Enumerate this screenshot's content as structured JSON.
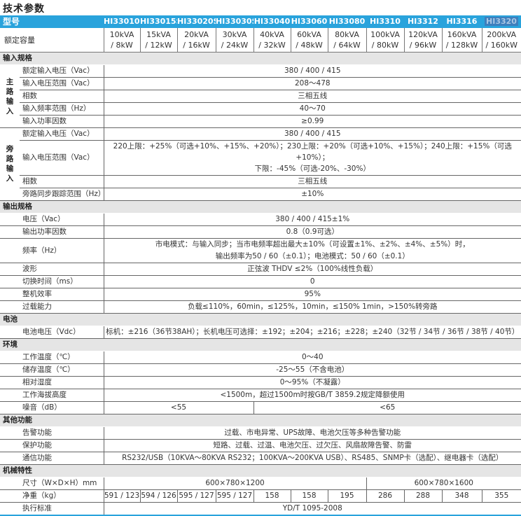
{
  "title": "技术参数",
  "header": {
    "label": "型号",
    "models": [
      "HI33010S/H",
      "HI33015S/H",
      "HI33020S/H",
      "HI33030S/H",
      "HI33040",
      "HI33060",
      "HI33080",
      "HI3310",
      "HI3312",
      "HI3316",
      "HI3320"
    ],
    "selected_model": "HI3320"
  },
  "capacity": {
    "label": "额定容量",
    "values": [
      "10kVA\n/ 8kW",
      "15kVA\n/ 12kW",
      "20kVA\n/ 16kW",
      "30kVA\n/ 24kW",
      "40kVA\n/ 32kW",
      "60kVA\n/ 48kW",
      "80kVA\n/ 64kW",
      "100kVA\n/ 80kW",
      "120kVA\n/ 96kW",
      "160kVA\n/ 128kW",
      "200kVA\n/ 160kW"
    ]
  },
  "sections": [
    {
      "title": "输入规格",
      "rows": [
        {
          "group": "主路输入",
          "group_rows": 5,
          "label": "额定输入电压（Vac）",
          "cells": [
            {
              "text": "380 / 400 / 415",
              "span": 11
            }
          ]
        },
        {
          "label": "输入电压范围（Vac）",
          "cells": [
            {
              "text": "208～478",
              "span": 11
            }
          ]
        },
        {
          "label": "相数",
          "cells": [
            {
              "text": "三相五线",
              "span": 11
            }
          ]
        },
        {
          "label": "输入频率范围（Hz）",
          "cells": [
            {
              "text": "40～70",
              "span": 11
            }
          ]
        },
        {
          "label": "输入功率因数",
          "cells": [
            {
              "text": "≥0.99",
              "span": 11
            }
          ]
        },
        {
          "group": "旁路输入",
          "group_rows": 4,
          "label": "额定输入电压（Vac）",
          "cells": [
            {
              "text": "380 / 400 / 415",
              "span": 11
            }
          ]
        },
        {
          "label": "输入电压范围（Vac）",
          "lines": 2,
          "cells": [
            {
              "text": "220上限：+25%（可选+10%、+15%、+20%）；230上限：+20%（可选+10%、+15%）；240上限：+15%（可选+10%）；\n下限：-45%（可选-20%、-30%）",
              "span": 11
            }
          ]
        },
        {
          "label": "相数",
          "cells": [
            {
              "text": "三相五线",
              "span": 11
            }
          ]
        },
        {
          "label": "旁路同步跟踪范围（Hz）",
          "cells": [
            {
              "text": "±10%",
              "span": 11
            }
          ]
        }
      ]
    },
    {
      "title": "输出规格",
      "rows": [
        {
          "label": "电压（Vac）",
          "cells": [
            {
              "text": "380 / 400 / 415±1%",
              "span": 11
            }
          ]
        },
        {
          "label": "输出功率因数",
          "cells": [
            {
              "text": "0.8（0.9可选）",
              "span": 11
            }
          ]
        },
        {
          "label": "频率（Hz）",
          "lines": 2,
          "cells": [
            {
              "text": "市电模式：与输入同步；当市电频率超出最大±10%（可设置±1%、±2%、±4%、±5%）时，\n输出频率为50 / 60（±0.1）；电池模式：50 / 60（±0.1）",
              "span": 11
            }
          ]
        },
        {
          "label": "波形",
          "cells": [
            {
              "text": "正弦波 THDV ≤2%（100%线性负载）",
              "span": 11
            }
          ]
        },
        {
          "label": "切换时间（ms）",
          "cells": [
            {
              "text": "0",
              "span": 11
            }
          ]
        },
        {
          "label": "整机效率",
          "cells": [
            {
              "text": "95%",
              "span": 11
            }
          ]
        },
        {
          "label": "过载能力",
          "cells": [
            {
              "text": "负载≤110%，60min，≤125%，10min，≤150% 1min，>150%转旁路",
              "span": 11
            }
          ]
        }
      ]
    },
    {
      "title": "电池",
      "rows": [
        {
          "label": "电池电压（Vdc）",
          "cells": [
            {
              "text": "标机：±216（36节38AH）；长机电压可选择：±192；±204；±216；±228；±240（32节 / 34节 / 36节 / 38节 / 40节）",
              "span": 11
            }
          ]
        }
      ]
    },
    {
      "title": "环境",
      "rows": [
        {
          "label": "工作温度（℃）",
          "cells": [
            {
              "text": "0～40",
              "span": 11
            }
          ]
        },
        {
          "label": "储存温度（℃）",
          "cells": [
            {
              "text": "-25～55（不含电池）",
              "span": 11
            }
          ]
        },
        {
          "label": "相对湿度",
          "cells": [
            {
              "text": "0～95%（不凝露）",
              "span": 11
            }
          ]
        },
        {
          "label": "工作海拔高度",
          "cells": [
            {
              "text": "<1500m，超过1500m时按GB/T 3859.2规定降额使用",
              "span": 11
            }
          ]
        },
        {
          "label": "噪音（dB）",
          "cells": [
            {
              "text": "<55",
              "span": 4
            },
            {
              "text": "<65",
              "span": 7
            }
          ]
        }
      ]
    },
    {
      "title": "其他功能",
      "rows": [
        {
          "label": "告警功能",
          "cells": [
            {
              "text": "过载、市电异常、UPS故障、电池欠压等多种告警功能",
              "span": 11
            }
          ]
        },
        {
          "label": "保护功能",
          "cells": [
            {
              "text": "短路、过载、过温、电池欠压、过欠压、风扇故障告警、防雷",
              "span": 11
            }
          ]
        },
        {
          "label": "通信功能",
          "cells": [
            {
              "text": "RS232/USB（10KVA～80KVA RS232；100KVA～200KVA USB）、RS485、SNMP卡（选配）、继电器卡（选配）",
              "span": 11
            }
          ]
        }
      ]
    },
    {
      "title": "机械特性",
      "rows": [
        {
          "label": "尺寸（W×D×H）mm",
          "cells": [
            {
              "text": "600×780×1200",
              "span": 7
            },
            {
              "text": "600×780×1600",
              "span": 4
            }
          ]
        },
        {
          "label": "净重（kg）",
          "cells": [
            {
              "text": "591 / 123",
              "span": 1
            },
            {
              "text": "594 / 126",
              "span": 1
            },
            {
              "text": "595 / 127",
              "span": 1
            },
            {
              "text": "595 / 127",
              "span": 1
            },
            {
              "text": "158",
              "span": 1
            },
            {
              "text": "158",
              "span": 1
            },
            {
              "text": "195",
              "span": 1
            },
            {
              "text": "286",
              "span": 1
            },
            {
              "text": "288",
              "span": 1
            },
            {
              "text": "348",
              "span": 1
            },
            {
              "text": "355",
              "span": 1
            }
          ]
        },
        {
          "label": "执行标准",
          "cells": [
            {
              "text": "YD/T 1095-2008",
              "span": 11
            }
          ]
        }
      ]
    }
  ],
  "colors": {
    "header_bg": "#29a3dc",
    "section_bg": "#e5e5e5"
  }
}
